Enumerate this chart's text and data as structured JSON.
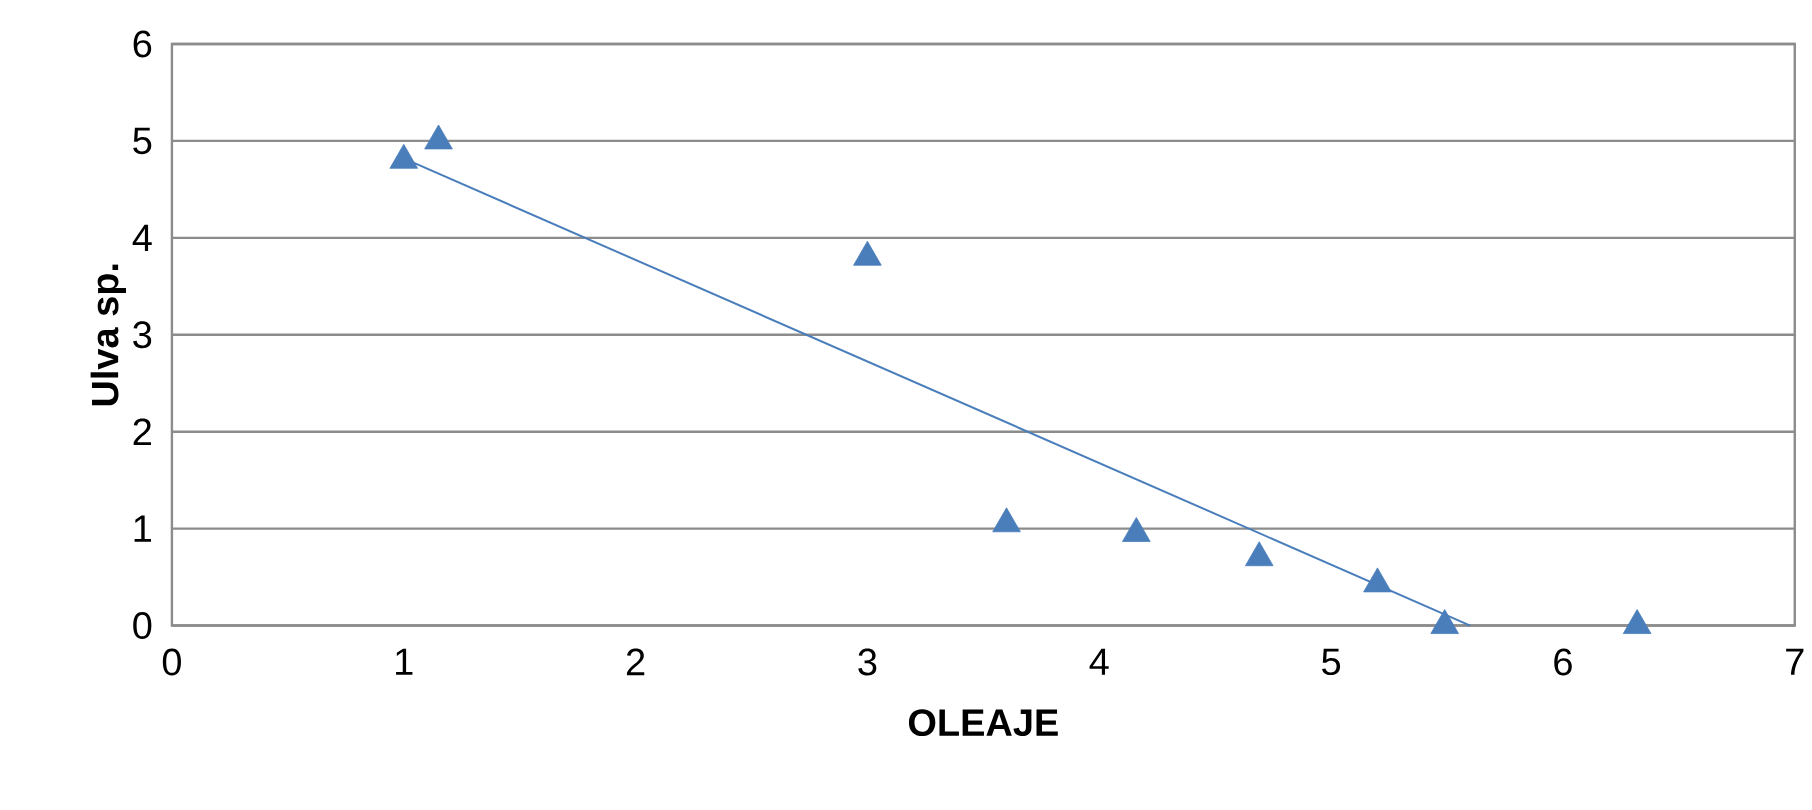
{
  "chart_data": {
    "type": "scatter",
    "xlabel": "OLEAJE",
    "ylabel": "Ulva sp.",
    "xlim": [
      0,
      7
    ],
    "xticks": [
      0,
      1,
      2,
      3,
      4,
      5,
      6,
      7
    ],
    "ylim": [
      0,
      6
    ],
    "yticks": [
      0,
      1,
      2,
      3,
      4,
      5,
      6
    ],
    "grid": "y",
    "marker": "triangle",
    "series": [
      {
        "color": "#4a7ebb",
        "x": [
          1.0,
          1.15,
          3.0,
          3.6,
          4.16,
          4.69,
          5.2,
          5.49,
          6.32
        ],
        "values": [
          4.8,
          5.0,
          3.8,
          1.05,
          0.95,
          0.7,
          0.43,
          0,
          0
        ]
      },
      {
        "type": "line",
        "color": "#4a7ebb",
        "marker": "none",
        "line_style": "solid",
        "x": [
          1.0,
          5.6
        ],
        "values": [
          4.82,
          0
        ]
      }
    ]
  }
}
